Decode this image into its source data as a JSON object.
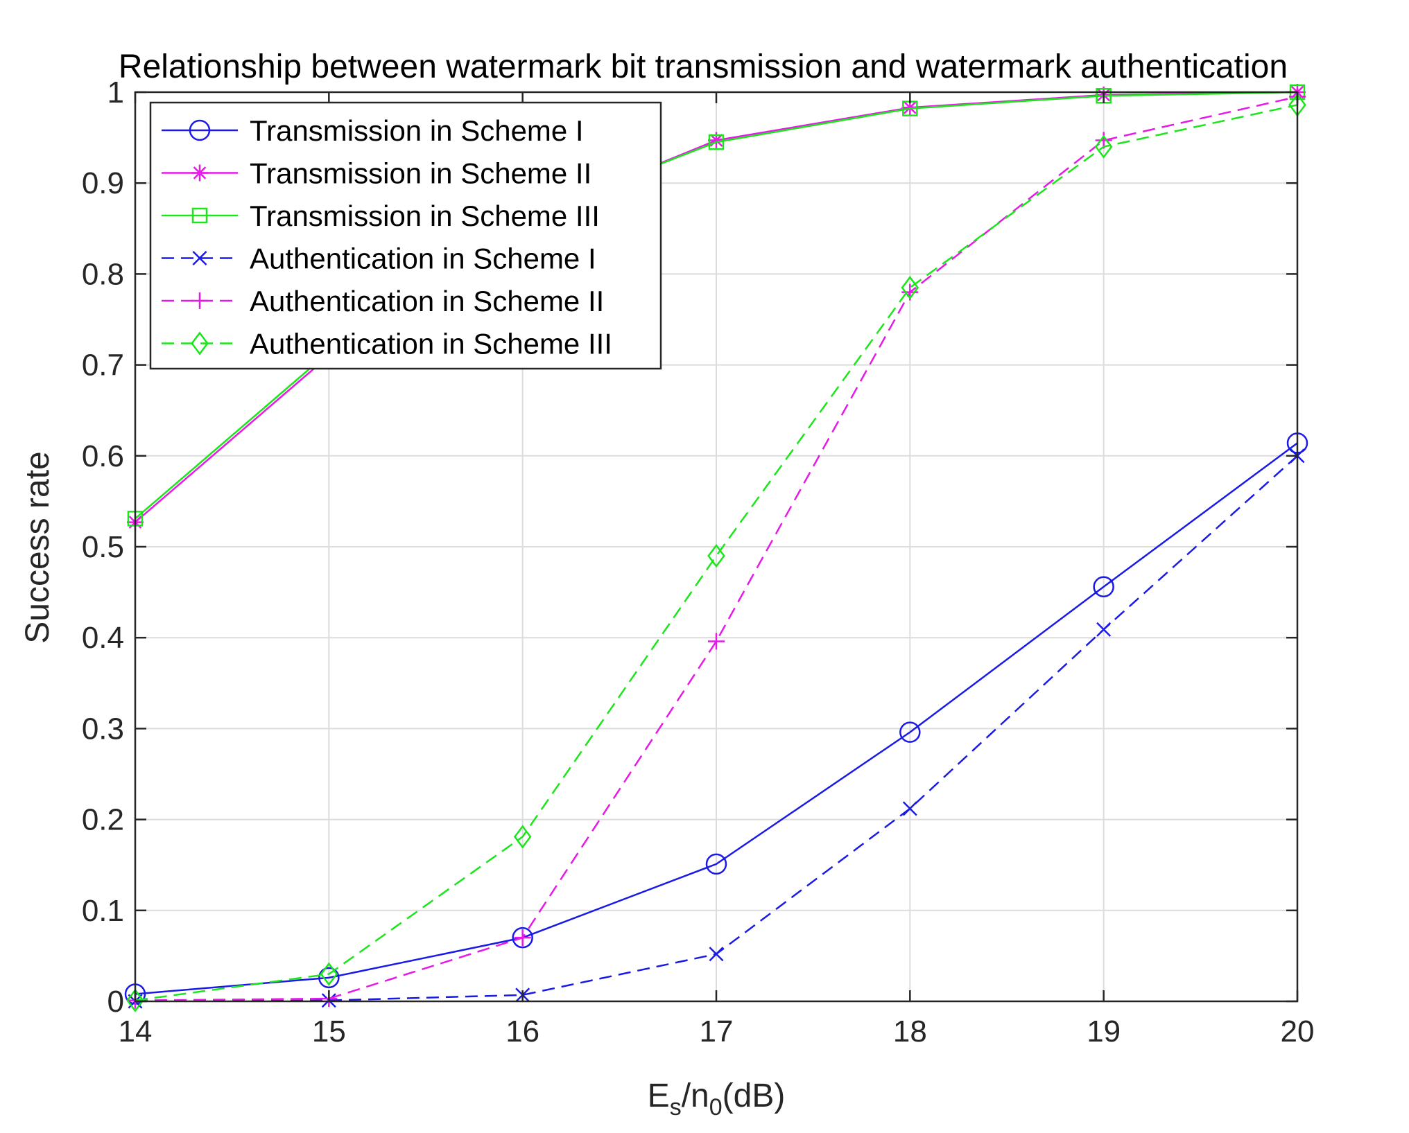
{
  "chart_data": {
    "type": "line",
    "title": "Relationship between watermark bit transmission and watermark authentication",
    "xlabel": {
      "base": "E",
      "sub1": "s",
      "mid": "/n",
      "sub2": "0",
      "tail": "(dB)"
    },
    "ylabel": "Success rate",
    "xlim": [
      14,
      20
    ],
    "ylim": [
      0,
      1
    ],
    "xticks": [
      14,
      15,
      16,
      17,
      18,
      19,
      20
    ],
    "yticks": [
      0,
      0.1,
      0.2,
      0.3,
      0.4,
      0.5,
      0.6,
      0.7,
      0.8,
      0.9,
      1
    ],
    "ytick_labels": [
      "0",
      "0.1",
      "0.2",
      "0.3",
      "0.4",
      "0.5",
      "0.6",
      "0.7",
      "0.8",
      "0.9",
      "1"
    ],
    "grid": true,
    "legend_position": "top-left",
    "x": [
      14,
      15,
      16,
      17,
      18,
      19,
      20
    ],
    "series": [
      {
        "name": "Transmission in Scheme I",
        "values": [
          0.008,
          0.026,
          0.07,
          0.151,
          0.296,
          0.456,
          0.614
        ],
        "color": "#1a1ae6",
        "dash": "solid",
        "marker": "circle"
      },
      {
        "name": "Transmission in Scheme II",
        "values": [
          0.527,
          0.71,
          0.86,
          0.947,
          0.983,
          0.997,
          1.0
        ],
        "color": "#e61ae6",
        "dash": "solid",
        "marker": "asterisk"
      },
      {
        "name": "Transmission in Scheme III",
        "values": [
          0.531,
          0.714,
          0.862,
          0.945,
          0.982,
          0.996,
          1.0
        ],
        "color": "#1ae61a",
        "dash": "solid",
        "marker": "square"
      },
      {
        "name": "Authentication in Scheme I",
        "values": [
          0.0,
          0.001,
          0.007,
          0.052,
          0.212,
          0.409,
          0.6
        ],
        "color": "#1a1ae6",
        "dash": "dashed",
        "marker": "x"
      },
      {
        "name": "Authentication in Scheme II",
        "values": [
          0.001,
          0.003,
          0.07,
          0.396,
          0.78,
          0.947,
          0.995
        ],
        "color": "#e61ae6",
        "dash": "dashed",
        "marker": "plus"
      },
      {
        "name": "Authentication in Scheme III",
        "values": [
          0.001,
          0.03,
          0.181,
          0.49,
          0.785,
          0.94,
          0.986
        ],
        "color": "#1ae61a",
        "dash": "dashed",
        "marker": "diamond"
      }
    ]
  }
}
